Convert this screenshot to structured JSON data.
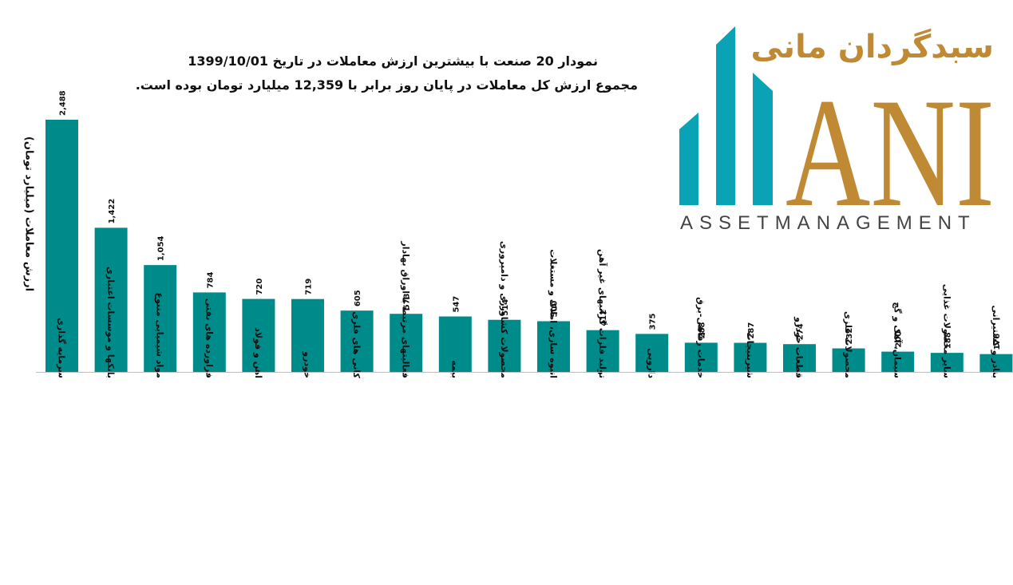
{
  "title_line1": "نمودار  20 صنعت با بیشترین ارزش معاملات در تاریخ 1399/10/01",
  "title_line2": "مجموع ارزش  کل معاملات در پایان روز برابر با 12,359 میلیارد تومان بوده است.",
  "logo": {
    "brand_fa": "سبدگردان مانی",
    "brand_ani": "ANI",
    "brand_en": "ASSETMANAGEMENT",
    "colors": {
      "teal": "#0aa3b5",
      "gold": "#c08a35",
      "gray": "#444444"
    }
  },
  "chart_data": {
    "type": "bar",
    "ylabel": "ارزش معاملات (میلیارد تومان)",
    "xlabel": "",
    "ylim": [
      0,
      2488
    ],
    "bar_color": "#008b8b",
    "categories": [
      "سرمایه گذاری",
      "بانکها و موسسات اعتباری",
      "مواد شیمیایی متنوع",
      "فراورده های نفتی",
      "اهن و فولاد",
      "خودرو",
      "کانی های فلزی",
      "فعالیتهای مرتبط با اوراق بهادار",
      "بیمه",
      "محصولات کشاورزی و دامپروری",
      "انبوه سازی، املاک و مستغلات",
      "تولید فلزات گرانبهای غیر آهن",
      "دارویی",
      "خدمات رفاهی-برق",
      "شیرینیجات",
      "قطعات خودرو",
      "محصولات فلزی",
      "سیمان، آهک و گچ",
      "سایر محصولات غذایی",
      "بنادر و کشتیرانی"
    ],
    "values": [
      2488,
      1422,
      1054,
      784,
      720,
      719,
      605,
      573,
      547,
      514,
      500,
      412,
      375,
      288,
      287,
      274,
      232,
      200,
      188,
      176
    ],
    "value_labels": [
      "2,488",
      "1,422",
      "1,054",
      "784",
      "720",
      "719",
      "605",
      "573",
      "547",
      "514",
      "500",
      "412",
      "375",
      "288",
      "287",
      "274",
      "232",
      "200",
      "188",
      "176"
    ],
    "legend": "none",
    "grid": false
  }
}
